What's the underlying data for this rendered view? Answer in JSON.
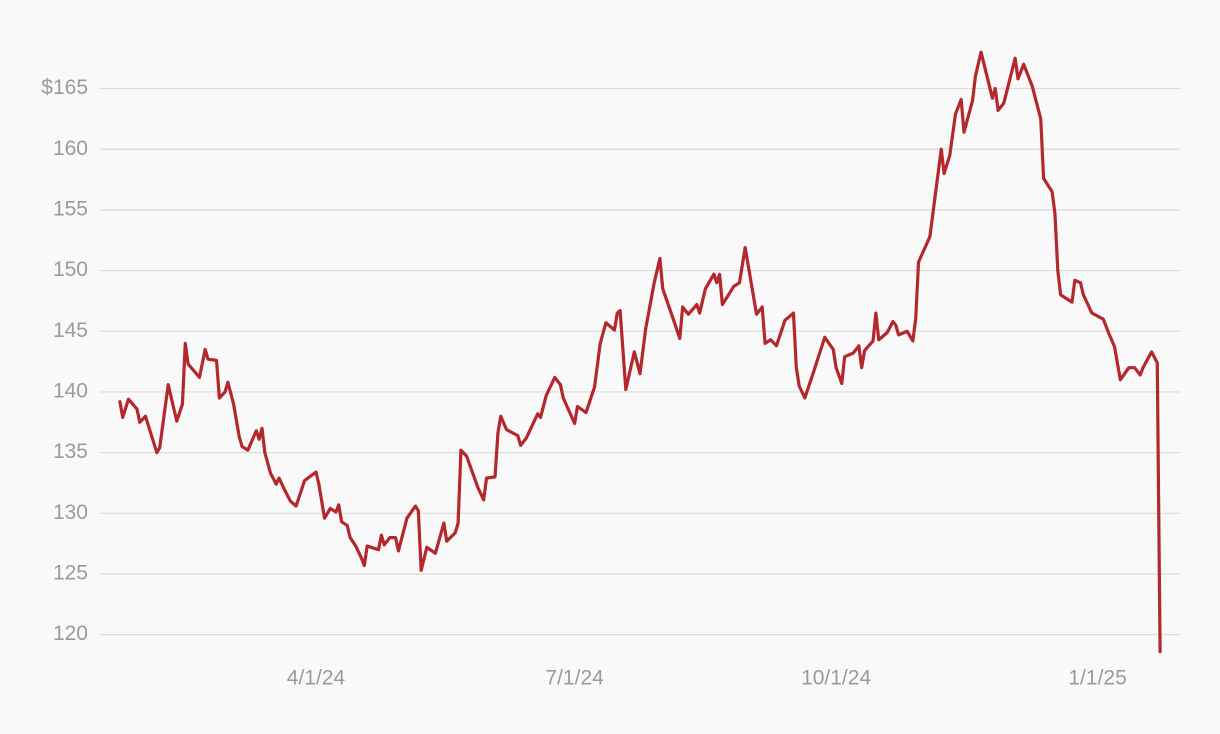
{
  "chart_data": {
    "type": "line",
    "x": [
      "2024-01-23",
      "2024-01-24",
      "2024-01-26",
      "2024-01-29",
      "2024-01-30",
      "2024-02-01",
      "2024-02-03",
      "2024-02-05",
      "2024-02-06",
      "2024-02-09",
      "2024-02-12",
      "2024-02-14",
      "2024-02-15",
      "2024-02-16",
      "2024-02-20",
      "2024-02-22",
      "2024-02-23",
      "2024-02-26",
      "2024-02-27",
      "2024-02-29",
      "2024-03-01",
      "2024-03-03",
      "2024-03-05",
      "2024-03-06",
      "2024-03-08",
      "2024-03-11",
      "2024-03-12",
      "2024-03-13",
      "2024-03-14",
      "2024-03-16",
      "2024-03-18",
      "2024-03-19",
      "2024-03-21",
      "2024-03-23",
      "2024-03-25",
      "2024-03-28",
      "2024-04-01",
      "2024-04-02",
      "2024-04-04",
      "2024-04-06",
      "2024-04-08",
      "2024-04-09",
      "2024-04-10",
      "2024-04-12",
      "2024-04-13",
      "2024-04-15",
      "2024-04-17",
      "2024-04-18",
      "2024-04-19",
      "2024-04-23",
      "2024-04-24",
      "2024-04-25",
      "2024-04-27",
      "2024-04-29",
      "2024-04-30",
      "2024-05-03",
      "2024-05-06",
      "2024-05-07",
      "2024-05-08",
      "2024-05-10",
      "2024-05-13",
      "2024-05-16",
      "2024-05-17",
      "2024-05-20",
      "2024-05-21",
      "2024-05-22",
      "2024-05-24",
      "2024-05-28",
      "2024-05-30",
      "2024-05-31",
      "2024-06-03",
      "2024-06-04",
      "2024-06-05",
      "2024-06-07",
      "2024-06-11",
      "2024-06-12",
      "2024-06-14",
      "2024-06-18",
      "2024-06-19",
      "2024-06-21",
      "2024-06-24",
      "2024-06-26",
      "2024-06-27",
      "2024-07-01",
      "2024-07-02",
      "2024-07-05",
      "2024-07-08",
      "2024-07-10",
      "2024-07-12",
      "2024-07-15",
      "2024-07-16",
      "2024-07-17",
      "2024-07-19",
      "2024-07-22",
      "2024-07-24",
      "2024-07-26",
      "2024-07-29",
      "2024-07-31",
      "2024-08-01",
      "2024-08-05",
      "2024-08-07",
      "2024-08-08",
      "2024-08-10",
      "2024-08-13",
      "2024-08-14",
      "2024-08-16",
      "2024-08-19",
      "2024-08-20",
      "2024-08-21",
      "2024-08-22",
      "2024-08-26",
      "2024-08-28",
      "2024-08-30",
      "2024-09-03",
      "2024-09-05",
      "2024-09-06",
      "2024-09-08",
      "2024-09-10",
      "2024-09-13",
      "2024-09-16",
      "2024-09-17",
      "2024-09-18",
      "2024-09-20",
      "2024-09-23",
      "2024-09-27",
      "2024-09-30",
      "2024-10-01",
      "2024-10-03",
      "2024-10-04",
      "2024-10-07",
      "2024-10-09",
      "2024-10-10",
      "2024-10-11",
      "2024-10-14",
      "2024-10-15",
      "2024-10-16",
      "2024-10-19",
      "2024-10-21",
      "2024-10-22",
      "2024-10-23",
      "2024-10-26",
      "2024-10-28",
      "2024-10-29",
      "2024-10-30",
      "2024-11-03",
      "2024-11-07",
      "2024-11-08",
      "2024-11-10",
      "2024-11-12",
      "2024-11-14",
      "2024-11-15",
      "2024-11-18",
      "2024-11-19",
      "2024-11-21",
      "2024-11-25",
      "2024-11-26",
      "2024-11-27",
      "2024-11-29",
      "2024-12-03",
      "2024-12-04",
      "2024-12-06",
      "2024-12-09",
      "2024-12-12",
      "2024-12-13",
      "2024-12-16",
      "2024-12-17",
      "2024-12-18",
      "2024-12-19",
      "2024-12-23",
      "2024-12-24",
      "2024-12-26",
      "2024-12-27",
      "2024-12-30",
      "2025-01-03",
      "2025-01-05",
      "2025-01-07",
      "2025-01-09",
      "2025-01-12",
      "2025-01-14",
      "2025-01-16",
      "2025-01-17",
      "2025-01-20",
      "2025-01-22",
      "2025-01-23"
    ],
    "series": [
      {
        "color": "#b3272d",
        "values": [
          139.2,
          137.9,
          139.4,
          138.6,
          137.5,
          138,
          136.5,
          135,
          135.4,
          140.6,
          137.6,
          139,
          144,
          142.3,
          141.2,
          143.5,
          142.7,
          142.6,
          139.5,
          140,
          140.8,
          139,
          136.3,
          135.5,
          135.2,
          136.8,
          136.1,
          137,
          135,
          133.3,
          132.4,
          132.9,
          131.9,
          131,
          130.6,
          132.7,
          133.4,
          132.4,
          129.6,
          130.4,
          130.1,
          130.7,
          129.3,
          129,
          128,
          127.3,
          126.3,
          125.7,
          127.3,
          127,
          128.2,
          127.4,
          128,
          128,
          126.9,
          129.6,
          130.6,
          130.2,
          125.3,
          127.2,
          126.7,
          129.2,
          127.7,
          128.4,
          129.2,
          135.2,
          134.7,
          132.1,
          131.1,
          132.9,
          133,
          136.6,
          138,
          136.9,
          136.4,
          135.6,
          136.2,
          138.2,
          137.9,
          139.7,
          141.2,
          140.6,
          139.5,
          137.4,
          138.8,
          138.3,
          140.4,
          144,
          145.7,
          145.1,
          146.5,
          146.7,
          140.2,
          143.3,
          141.5,
          145.2,
          149,
          151,
          148.5,
          145.8,
          144.4,
          147,
          146.4,
          147.2,
          146.5,
          148.5,
          149.7,
          149,
          149.7,
          147.2,
          148.7,
          149,
          151.9,
          146.4,
          147,
          144,
          144.3,
          143.8,
          145.9,
          146.5,
          142,
          140.5,
          139.5,
          141.6,
          144.5,
          143.5,
          142,
          140.7,
          142.9,
          143.2,
          143.8,
          142,
          143.4,
          144.2,
          146.5,
          144.3,
          144.9,
          145.8,
          145.5,
          144.7,
          145,
          144.2,
          146,
          150.7,
          152.8,
          160,
          158,
          159.5,
          162.9,
          164.1,
          161.4,
          164,
          166,
          168,
          164.2,
          165,
          163.2,
          163.8,
          167.5,
          165.8,
          167,
          165.2,
          162.5,
          157.6,
          156.5,
          154.7,
          150,
          148,
          147.4,
          149.2,
          149,
          148,
          146.5,
          146,
          144.8,
          143.7,
          141,
          142,
          142,
          141.4,
          142,
          143.3,
          142.4,
          118.6
        ]
      }
    ],
    "xlim": [
      "2024-01-16",
      "2025-01-30"
    ],
    "xticks": [
      {
        "value": "2024-04-01",
        "label": "4/1/24"
      },
      {
        "value": "2024-07-01",
        "label": "7/1/24"
      },
      {
        "value": "2024-10-01",
        "label": "10/1/24"
      },
      {
        "value": "2025-01-01",
        "label": "1/1/25"
      }
    ],
    "ylim": [
      117.5,
      169
    ],
    "yticks": [
      120,
      125,
      130,
      135,
      140,
      145,
      150,
      155,
      160,
      {
        "value": 165,
        "label": "$165"
      }
    ],
    "grid": true
  }
}
